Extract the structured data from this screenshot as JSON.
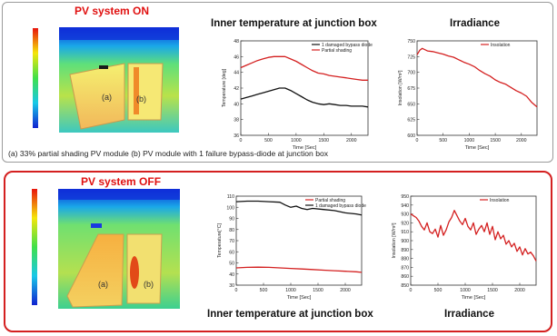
{
  "panel_on": {
    "title": "PV system ON",
    "chart1_title": "Inner temperature at junction box",
    "chart2_title": "Irradiance",
    "caption": "(a) 33% partial shading PV module  (b) PV module with 1 failure bypass-diode at junction box",
    "label_a": "(a)",
    "label_b": "(b)"
  },
  "panel_off": {
    "title": "PV system OFF",
    "chart1_title": "Inner temperature at junction box",
    "chart2_title": "Irradiance",
    "label_a": "(a)",
    "label_b": "(b)"
  },
  "colors": {
    "series_red": "#d42020",
    "series_black": "#111111",
    "off_border": "#d42020"
  },
  "chart_data": [
    {
      "type": "line",
      "xlabel": "Time [Sec]",
      "ylabel": "Temperature [deg]",
      "xlim": [
        0,
        2300
      ],
      "ylim": [
        36,
        48
      ],
      "xticks": [
        0,
        500,
        1000,
        1500,
        2000
      ],
      "yticks": [
        36,
        38,
        40,
        42,
        44,
        46,
        48
      ],
      "legend_position": "top-right",
      "series": [
        {
          "name": "1 damaged bypass diode",
          "color": "#111111",
          "x": [
            0,
            100,
            200,
            300,
            400,
            500,
            600,
            700,
            800,
            900,
            1000,
            1100,
            1200,
            1300,
            1400,
            1500,
            1600,
            1700,
            1800,
            1900,
            2000,
            2100,
            2200,
            2300
          ],
          "y": [
            40.6,
            40.8,
            41.0,
            41.2,
            41.4,
            41.6,
            41.8,
            42.0,
            42.0,
            41.7,
            41.3,
            40.9,
            40.5,
            40.2,
            40.0,
            39.9,
            40.0,
            39.9,
            39.8,
            39.8,
            39.7,
            39.7,
            39.7,
            39.6
          ]
        },
        {
          "name": "Partial shading",
          "color": "#d42020",
          "x": [
            0,
            100,
            200,
            300,
            400,
            500,
            600,
            700,
            800,
            900,
            1000,
            1100,
            1200,
            1300,
            1400,
            1500,
            1600,
            1700,
            1800,
            1900,
            2000,
            2100,
            2200,
            2300
          ],
          "y": [
            44.6,
            44.9,
            45.2,
            45.5,
            45.7,
            45.9,
            46.0,
            46.0,
            46.0,
            45.7,
            45.4,
            45.0,
            44.6,
            44.2,
            43.9,
            43.8,
            43.6,
            43.5,
            43.4,
            43.3,
            43.2,
            43.1,
            43.0,
            43.0
          ]
        }
      ]
    },
    {
      "type": "line",
      "xlabel": "Time [Sec]",
      "ylabel": "Insolation [W/m²]",
      "xlim": [
        0,
        2300
      ],
      "ylim": [
        600,
        750
      ],
      "xticks": [
        0,
        500,
        1000,
        1500,
        2000
      ],
      "yticks": [
        600,
        625,
        650,
        675,
        700,
        725,
        750
      ],
      "legend_position": "top-right",
      "series": [
        {
          "name": "Insolation",
          "color": "#d42020",
          "x": [
            0,
            50,
            100,
            150,
            200,
            300,
            400,
            500,
            600,
            700,
            800,
            900,
            1000,
            1100,
            1200,
            1300,
            1400,
            1500,
            1600,
            1700,
            1800,
            1900,
            2000,
            2100,
            2200,
            2300
          ],
          "y": [
            728,
            735,
            738,
            736,
            734,
            733,
            731,
            729,
            726,
            724,
            720,
            716,
            713,
            709,
            703,
            698,
            694,
            688,
            684,
            681,
            676,
            671,
            667,
            662,
            652,
            645
          ]
        }
      ]
    },
    {
      "type": "line",
      "xlabel": "Time [Sec]",
      "ylabel": "Temperature[°C]",
      "xlim": [
        0,
        2300
      ],
      "ylim": [
        30,
        110
      ],
      "xticks": [
        0,
        500,
        1000,
        1500,
        2000
      ],
      "yticks": [
        30,
        40,
        50,
        60,
        70,
        80,
        90,
        100,
        110
      ],
      "legend_position": "top-right",
      "series": [
        {
          "name": "Partial shading",
          "color": "#d42020",
          "x": [
            0,
            200,
            400,
            600,
            800,
            1000,
            1200,
            1400,
            1600,
            1800,
            2000,
            2200,
            2300
          ],
          "y": [
            45.5,
            46.0,
            46.2,
            46.0,
            45.5,
            45.0,
            44.5,
            44.0,
            43.5,
            43.0,
            42.5,
            42.0,
            41.5
          ]
        },
        {
          "name": "1 damaged bypass diode",
          "color": "#111111",
          "x": [
            0,
            200,
            400,
            600,
            800,
            900,
            1000,
            1100,
            1200,
            1300,
            1400,
            1600,
            1800,
            2000,
            2200,
            2300
          ],
          "y": [
            105,
            105.5,
            105.5,
            105,
            104.5,
            102,
            100,
            101,
            99,
            98,
            99,
            98,
            97,
            95,
            94,
            93
          ]
        }
      ]
    },
    {
      "type": "line",
      "xlabel": "Time [Sec]",
      "ylabel": "Insolation [W/m²]",
      "xlim": [
        0,
        2300
      ],
      "ylim": [
        850,
        950
      ],
      "xticks": [
        0,
        500,
        1000,
        1500,
        2000
      ],
      "yticks": [
        850,
        860,
        870,
        880,
        890,
        900,
        910,
        920,
        930,
        940,
        950
      ],
      "legend_position": "top-right",
      "series": [
        {
          "name": "Insolation",
          "color": "#d42020",
          "x": [
            0,
            50,
            100,
            150,
            200,
            250,
            300,
            350,
            400,
            450,
            500,
            550,
            600,
            650,
            700,
            750,
            800,
            850,
            900,
            950,
            1000,
            1050,
            1100,
            1150,
            1200,
            1250,
            1300,
            1350,
            1400,
            1450,
            1500,
            1550,
            1600,
            1650,
            1700,
            1750,
            1800,
            1850,
            1900,
            1950,
            2000,
            2050,
            2100,
            2150,
            2200,
            2250,
            2300
          ],
          "y": [
            930,
            928,
            926,
            922,
            916,
            912,
            920,
            910,
            908,
            913,
            904,
            917,
            906,
            912,
            921,
            926,
            934,
            928,
            922,
            918,
            925,
            916,
            912,
            920,
            907,
            913,
            917,
            910,
            920,
            907,
            916,
            901,
            910,
            902,
            906,
            896,
            900,
            893,
            897,
            888,
            893,
            884,
            891,
            885,
            887,
            883,
            877
          ]
        }
      ]
    }
  ]
}
